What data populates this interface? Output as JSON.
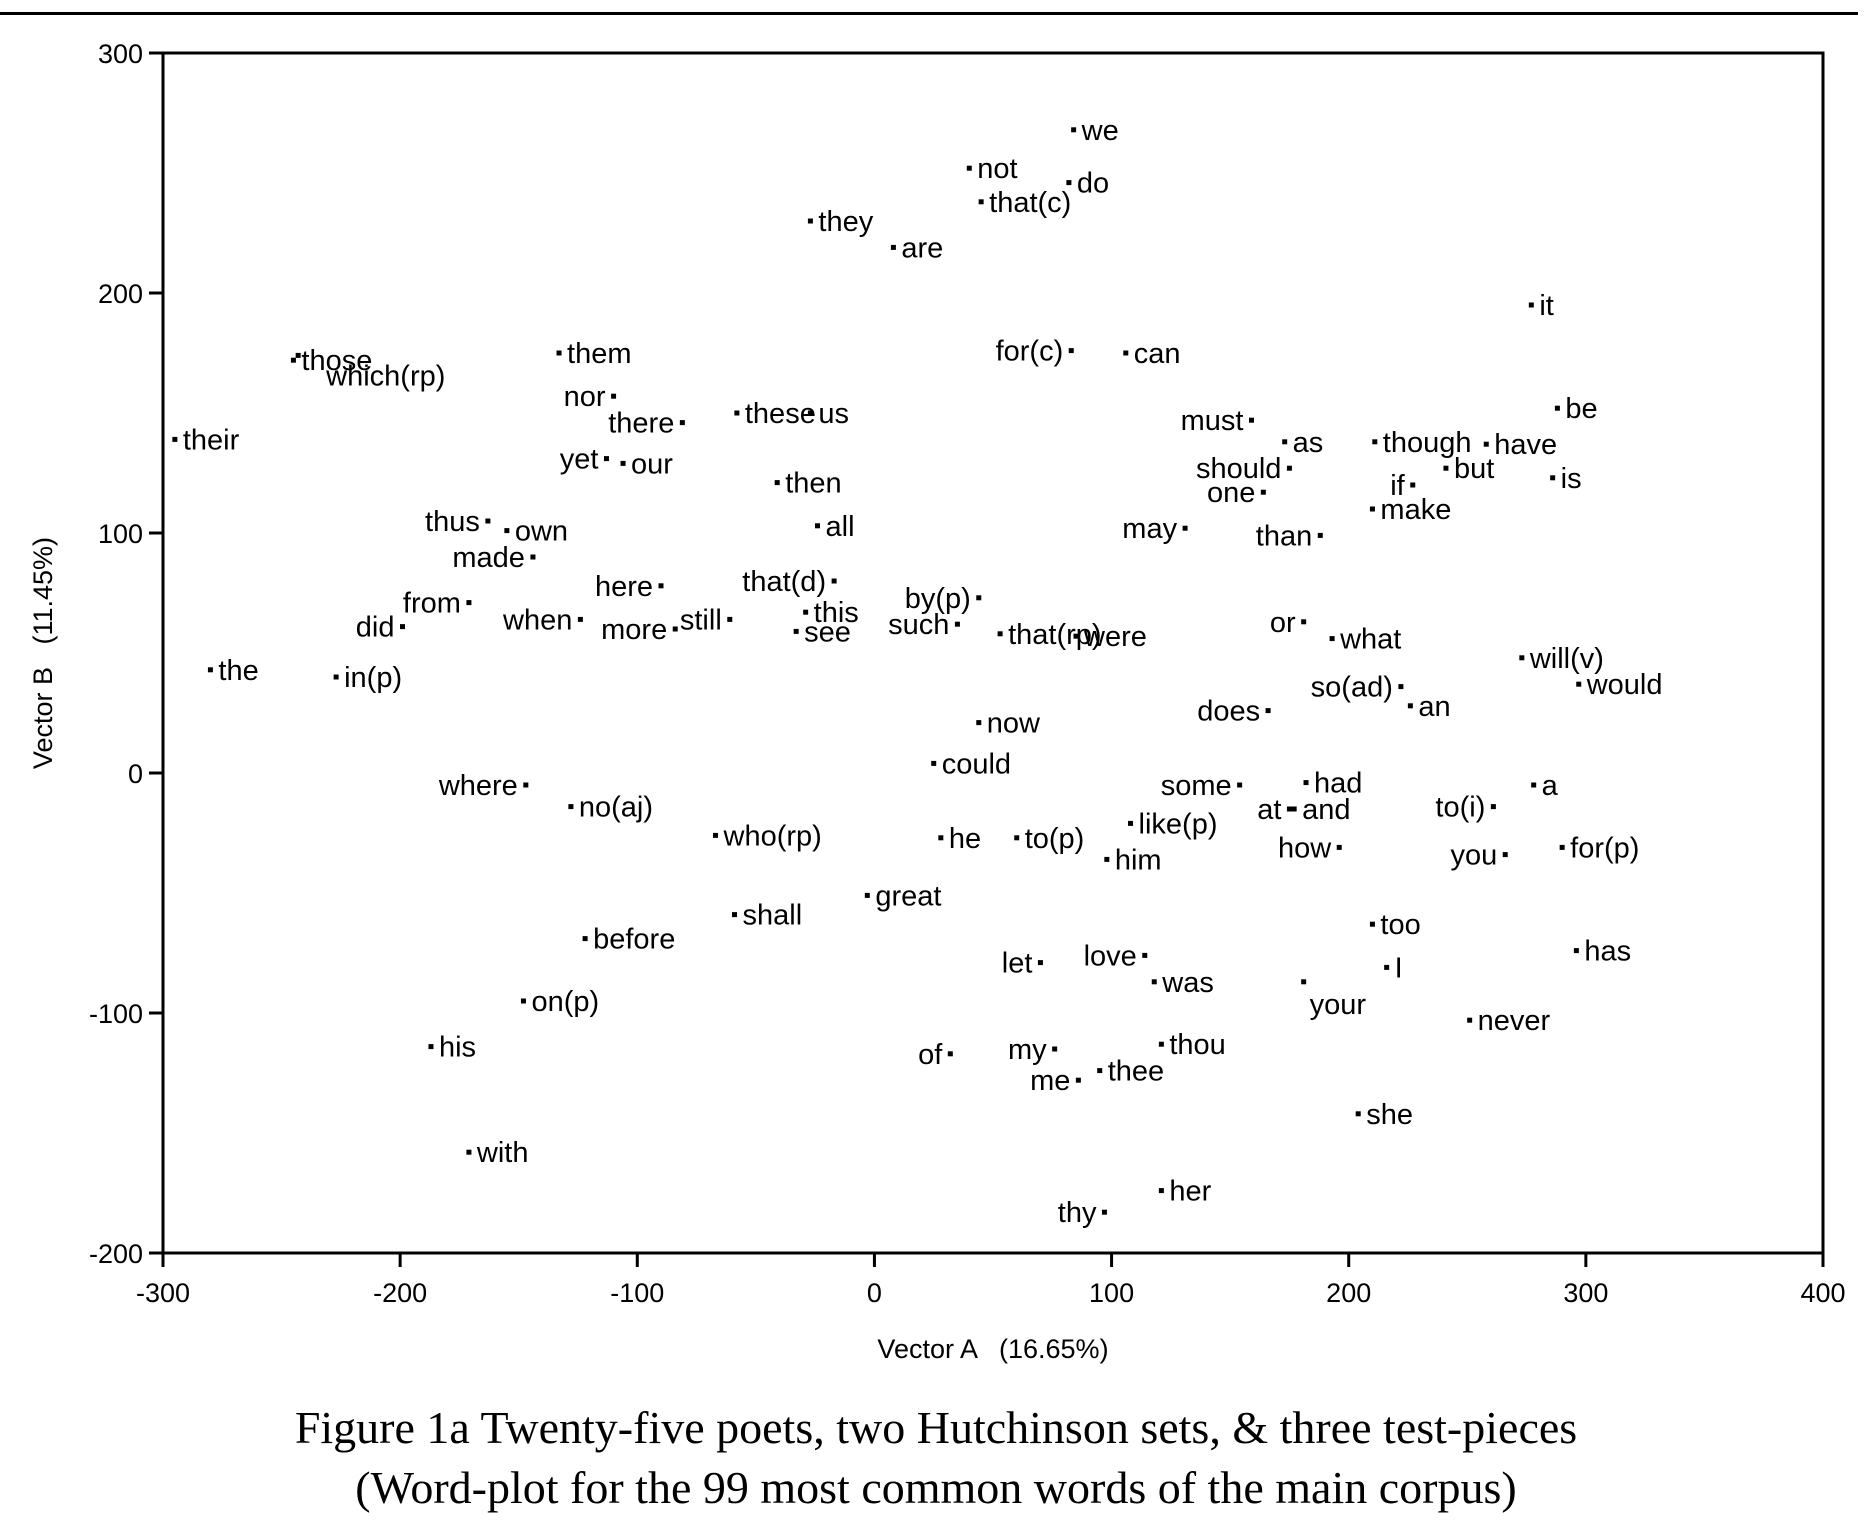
{
  "caption": {
    "line1": "Figure 1a Twenty-five poets, two Hutchinson sets, & three test-pieces",
    "line2": "(Word-plot for the 99 most common words of the main corpus)"
  },
  "chart_data": {
    "type": "scatter",
    "title": "",
    "xlabel": "Vector A   (16.65%)",
    "ylabel": "Vector B   (11.45%)",
    "xlim": [
      -300,
      400
    ],
    "ylim": [
      -200,
      300
    ],
    "xticks": [
      -300,
      -200,
      -100,
      0,
      100,
      200,
      300,
      400
    ],
    "yticks": [
      -200,
      -100,
      0,
      100,
      200,
      300
    ],
    "grid": false,
    "legend": "none",
    "points": [
      {
        "label": "we",
        "x": 84,
        "y": 268,
        "side": "right"
      },
      {
        "label": "not",
        "x": 40,
        "y": 252,
        "side": "right"
      },
      {
        "label": "do",
        "x": 82,
        "y": 246,
        "side": "right"
      },
      {
        "label": "that(c)",
        "x": 45,
        "y": 238,
        "side": "right"
      },
      {
        "label": "they",
        "x": -27,
        "y": 230,
        "side": "right"
      },
      {
        "label": "are",
        "x": 8,
        "y": 219,
        "side": "right"
      },
      {
        "label": "it",
        "x": 277,
        "y": 195,
        "side": "right"
      },
      {
        "label": "those",
        "x": -245,
        "y": 172,
        "side": "right"
      },
      {
        "label": "which(rp)",
        "x": -243,
        "y": 174,
        "side": "none"
      },
      {
        "label": "them",
        "x": -133,
        "y": 175,
        "side": "right"
      },
      {
        "label": "for(c)",
        "x": 83,
        "y": 176,
        "side": "left"
      },
      {
        "label": "can",
        "x": 106,
        "y": 175,
        "side": "right"
      },
      {
        "label": "these",
        "x": -58,
        "y": 150,
        "side": "right"
      },
      {
        "label": "us",
        "x": -27,
        "y": 150,
        "side": "right"
      },
      {
        "label": "nor",
        "x": -110,
        "y": 157,
        "side": "left"
      },
      {
        "label": "there",
        "x": -81,
        "y": 146,
        "side": "left"
      },
      {
        "label": "their",
        "x": -295,
        "y": 139,
        "side": "right"
      },
      {
        "label": "be",
        "x": 288,
        "y": 152,
        "side": "right"
      },
      {
        "label": "must",
        "x": 159,
        "y": 147,
        "side": "left"
      },
      {
        "label": "as",
        "x": 173,
        "y": 138,
        "side": "right"
      },
      {
        "label": "though",
        "x": 211,
        "y": 138,
        "side": "right"
      },
      {
        "label": "have",
        "x": 258,
        "y": 137,
        "side": "right"
      },
      {
        "label": "yet",
        "x": -113,
        "y": 131,
        "side": "left"
      },
      {
        "label": "our",
        "x": -106,
        "y": 129,
        "side": "right"
      },
      {
        "label": "should",
        "x": 175,
        "y": 127,
        "side": "left"
      },
      {
        "label": "but",
        "x": 241,
        "y": 127,
        "side": "right"
      },
      {
        "label": "then",
        "x": -41,
        "y": 121,
        "side": "right"
      },
      {
        "label": "if",
        "x": 227,
        "y": 120,
        "side": "left"
      },
      {
        "label": "is",
        "x": 286,
        "y": 123,
        "side": "right"
      },
      {
        "label": "one",
        "x": 164,
        "y": 117,
        "side": "left"
      },
      {
        "label": "make",
        "x": 210,
        "y": 110,
        "side": "right"
      },
      {
        "label": "thus",
        "x": -163,
        "y": 105,
        "side": "left"
      },
      {
        "label": "own",
        "x": -155,
        "y": 101,
        "side": "right"
      },
      {
        "label": "all",
        "x": -24,
        "y": 103,
        "side": "right"
      },
      {
        "label": "may",
        "x": 131,
        "y": 102,
        "side": "left"
      },
      {
        "label": "than",
        "x": 188,
        "y": 99,
        "side": "left"
      },
      {
        "label": "made",
        "x": -144,
        "y": 90,
        "side": "left"
      },
      {
        "label": "here",
        "x": -90,
        "y": 78,
        "side": "left"
      },
      {
        "label": "that(d)",
        "x": -17,
        "y": 80,
        "side": "left"
      },
      {
        "label": "by(p)",
        "x": 44,
        "y": 73,
        "side": "left"
      },
      {
        "label": "from",
        "x": -171,
        "y": 71,
        "side": "left"
      },
      {
        "label": "still",
        "x": -61,
        "y": 64,
        "side": "left"
      },
      {
        "label": "this",
        "x": -29,
        "y": 67,
        "side": "right"
      },
      {
        "label": "that(rp)",
        "x": 53,
        "y": 58,
        "side": "right"
      },
      {
        "label": "or",
        "x": 181,
        "y": 63,
        "side": "left"
      },
      {
        "label": "did",
        "x": -199,
        "y": 61,
        "side": "left"
      },
      {
        "label": "when",
        "x": -124,
        "y": 64,
        "side": "left"
      },
      {
        "label": "more",
        "x": -84,
        "y": 60,
        "side": "left"
      },
      {
        "label": "such",
        "x": 35,
        "y": 62,
        "side": "left"
      },
      {
        "label": "see",
        "x": -33,
        "y": 59,
        "side": "right"
      },
      {
        "label": "what",
        "x": 193,
        "y": 56,
        "side": "right"
      },
      {
        "label": "were",
        "x": 85,
        "y": 57,
        "side": "right"
      },
      {
        "label": "will(v)",
        "x": 273,
        "y": 48,
        "side": "right"
      },
      {
        "label": "the",
        "x": -280,
        "y": 43,
        "side": "right"
      },
      {
        "label": "in(p)",
        "x": -227,
        "y": 40,
        "side": "right"
      },
      {
        "label": "so(ad)",
        "x": 222,
        "y": 36,
        "side": "left"
      },
      {
        "label": "would",
        "x": 297,
        "y": 37,
        "side": "right"
      },
      {
        "label": "does",
        "x": 166,
        "y": 26,
        "side": "left"
      },
      {
        "label": "an",
        "x": 226,
        "y": 28,
        "side": "right"
      },
      {
        "label": "now",
        "x": 44,
        "y": 21,
        "side": "right"
      },
      {
        "label": "could",
        "x": 25,
        "y": 4,
        "side": "right"
      },
      {
        "label": "had",
        "x": 182,
        "y": -4,
        "side": "right"
      },
      {
        "label": "where",
        "x": -147,
        "y": -5,
        "side": "left"
      },
      {
        "label": "some",
        "x": 154,
        "y": -5,
        "side": "left"
      },
      {
        "label": "a",
        "x": 278,
        "y": -5,
        "side": "right"
      },
      {
        "label": "no(aj)",
        "x": -128,
        "y": -14,
        "side": "right"
      },
      {
        "label": "at",
        "x": 175,
        "y": -15,
        "side": "left"
      },
      {
        "label": "and",
        "x": 177,
        "y": -15,
        "side": "right"
      },
      {
        "label": "to(i)",
        "x": 261,
        "y": -14,
        "side": "left"
      },
      {
        "label": "like(p)",
        "x": 108,
        "y": -21,
        "side": "right"
      },
      {
        "label": "who(rp)",
        "x": -67,
        "y": -26,
        "side": "right"
      },
      {
        "label": "he",
        "x": 28,
        "y": -27,
        "side": "right"
      },
      {
        "label": "to(p)",
        "x": 60,
        "y": -27,
        "side": "right"
      },
      {
        "label": "how",
        "x": 196,
        "y": -31,
        "side": "left"
      },
      {
        "label": "you",
        "x": 266,
        "y": -34,
        "side": "left"
      },
      {
        "label": "for(p)",
        "x": 290,
        "y": -31,
        "side": "right"
      },
      {
        "label": "him",
        "x": 98,
        "y": -36,
        "side": "right"
      },
      {
        "label": "great",
        "x": -3,
        "y": -51,
        "side": "right"
      },
      {
        "label": "shall",
        "x": -59,
        "y": -59,
        "side": "right"
      },
      {
        "label": "too",
        "x": 210,
        "y": -63,
        "side": "right"
      },
      {
        "label": "before",
        "x": -122,
        "y": -69,
        "side": "right"
      },
      {
        "label": "has",
        "x": 296,
        "y": -74,
        "side": "right"
      },
      {
        "label": "love",
        "x": 114,
        "y": -76,
        "side": "left"
      },
      {
        "label": "let",
        "x": 70,
        "y": -79,
        "side": "left"
      },
      {
        "label": "I",
        "x": 216,
        "y": -81,
        "side": "right"
      },
      {
        "label": "was",
        "x": 118,
        "y": -87,
        "side": "right"
      },
      {
        "label": "your",
        "x": 181,
        "y": -87,
        "side": "none"
      },
      {
        "label": "on(p)",
        "x": -148,
        "y": -95,
        "side": "right"
      },
      {
        "label": "never",
        "x": 251,
        "y": -103,
        "side": "right"
      },
      {
        "label": "his",
        "x": -187,
        "y": -114,
        "side": "right"
      },
      {
        "label": "of",
        "x": 32,
        "y": -117,
        "side": "left"
      },
      {
        "label": "my",
        "x": 76,
        "y": -115,
        "side": "left"
      },
      {
        "label": "thou",
        "x": 121,
        "y": -113,
        "side": "right"
      },
      {
        "label": "me",
        "x": 86,
        "y": -128,
        "side": "left"
      },
      {
        "label": "thee",
        "x": 95,
        "y": -124,
        "side": "right"
      },
      {
        "label": "she",
        "x": 204,
        "y": -142,
        "side": "right"
      },
      {
        "label": "with",
        "x": -171,
        "y": -158,
        "side": "right"
      },
      {
        "label": "her",
        "x": 121,
        "y": -174,
        "side": "right"
      },
      {
        "label": "thy",
        "x": 97,
        "y": -183,
        "side": "left"
      }
    ]
  }
}
